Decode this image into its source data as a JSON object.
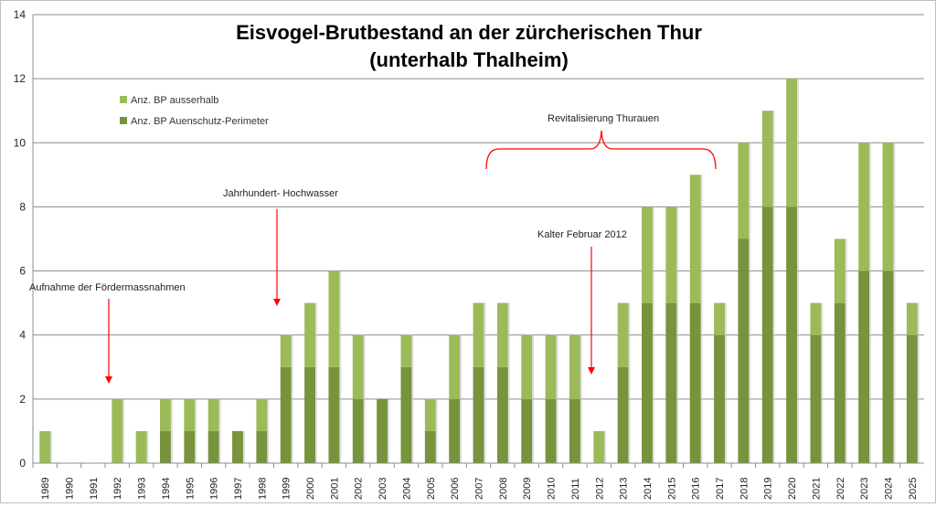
{
  "chart_data": {
    "type": "bar",
    "stacked": true,
    "title": "Eisvogel-Brutbestand an der zürcherischen Thur",
    "subtitle": "(unterhalb Thalheim)",
    "xlabel": "",
    "ylabel": "",
    "ylim": [
      0,
      14
    ],
    "yticks": [
      0,
      2,
      4,
      6,
      8,
      10,
      12,
      14
    ],
    "grid": true,
    "legend_position": "top-left",
    "categories": [
      "1989",
      "1990",
      "1991",
      "1992",
      "1993",
      "1994",
      "1995",
      "1996",
      "1997",
      "1998",
      "1999",
      "2000",
      "2001",
      "2002",
      "2003",
      "2004",
      "2005",
      "2006",
      "2007",
      "2008",
      "2009",
      "2010",
      "2011",
      "2012",
      "2013",
      "2014",
      "2015",
      "2016",
      "2017",
      "2018",
      "2019",
      "2020",
      "2021",
      "2022",
      "2023",
      "2024",
      "2025"
    ],
    "series": [
      {
        "name": "Anz. BP Auenschutz-Perimeter",
        "color": "#77933c",
        "values": [
          0,
          0,
          0,
          0,
          0,
          1,
          1,
          1,
          1,
          1,
          3,
          3,
          3,
          2,
          2,
          3,
          1,
          2,
          3,
          3,
          2,
          2,
          2,
          0,
          3,
          5,
          5,
          5,
          4,
          7,
          8,
          8,
          4,
          5,
          6,
          6,
          4
        ]
      },
      {
        "name": "Anz. BP ausserhalb",
        "color": "#9bbb59",
        "values": [
          1,
          0,
          0,
          2,
          1,
          1,
          1,
          1,
          0,
          1,
          1,
          2,
          3,
          2,
          0,
          1,
          1,
          2,
          2,
          2,
          2,
          2,
          2,
          1,
          2,
          3,
          3,
          4,
          1,
          3,
          3,
          4,
          1,
          2,
          4,
          4,
          1
        ]
      }
    ],
    "annotations": {
      "foerder": "Aufnahme der Fördermassnahmen",
      "hochwasser": "Jahrhundert- Hochwasser",
      "kalter": "Kalter Februar 2012",
      "revital": "Revitalisierung Thurauen"
    },
    "annotation_color": "#ff0000"
  }
}
